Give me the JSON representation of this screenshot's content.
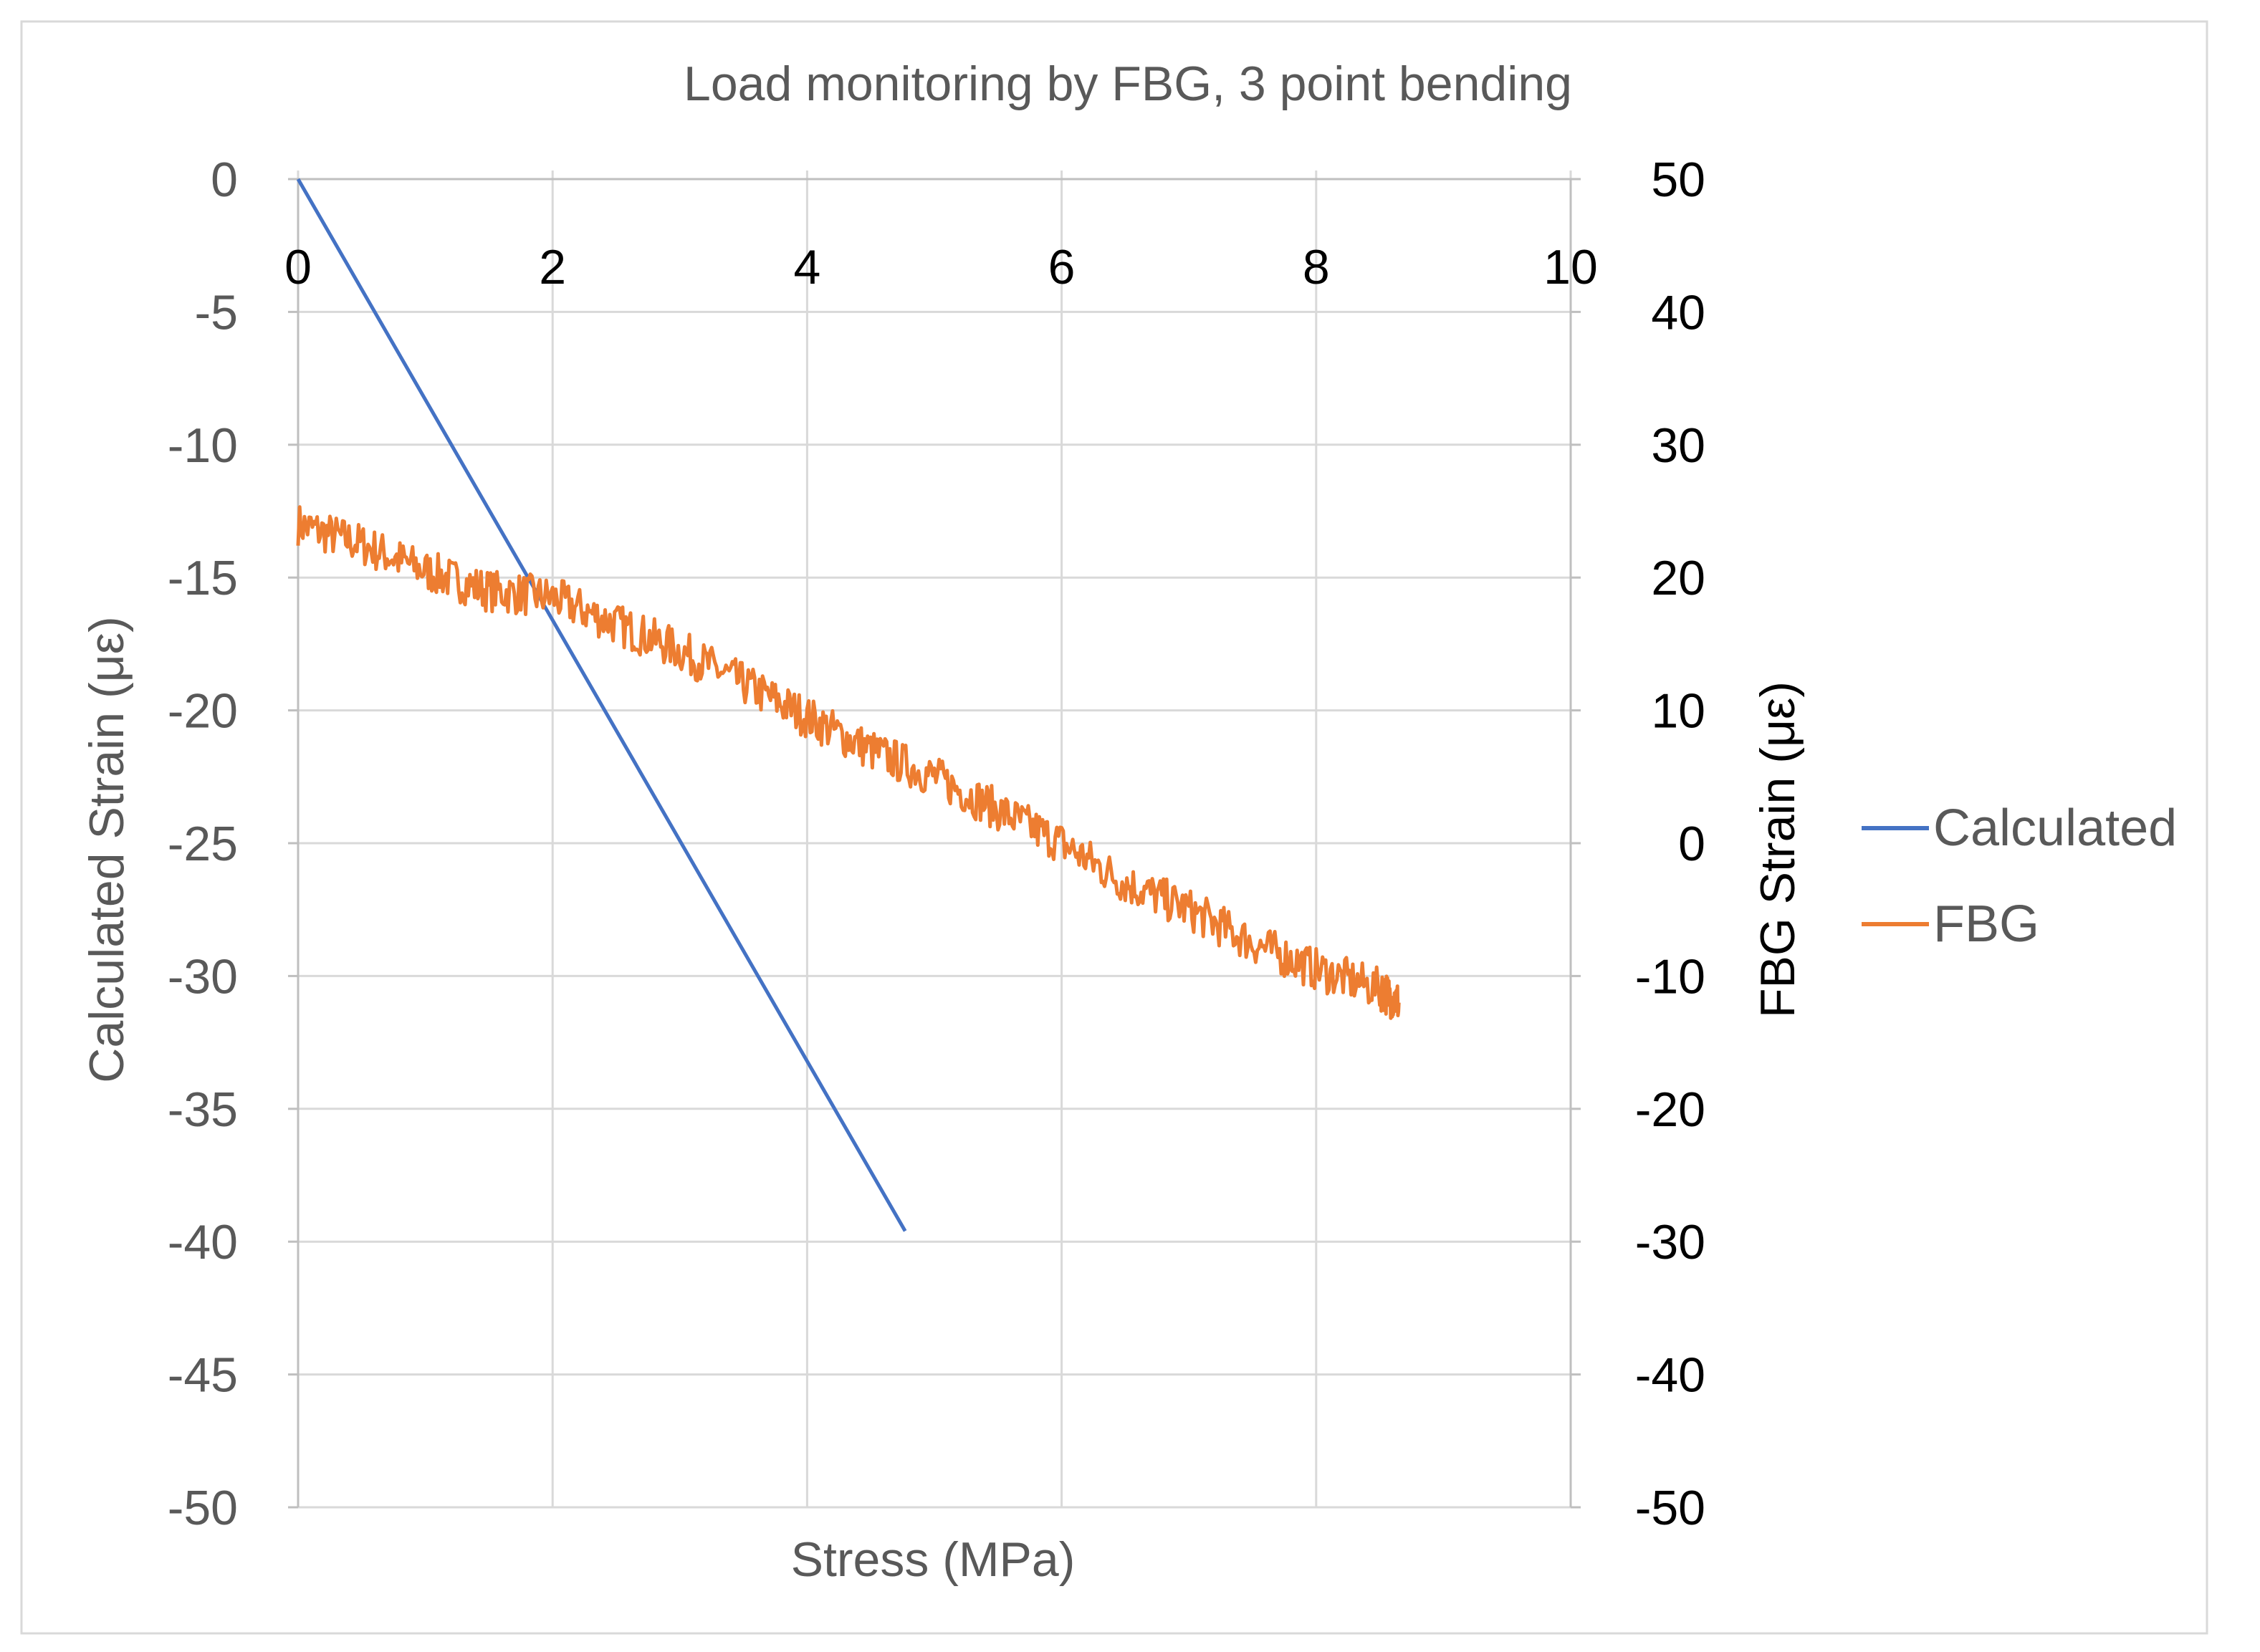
{
  "chart_data": {
    "type": "line",
    "title": "Load monitoring by FBG, 3 point bending",
    "xlabel": "Stress (MPa)",
    "ylabel_left": "Calculated Strain (με)",
    "ylabel_right": "FBG Strain (με)",
    "xlim": [
      0,
      10
    ],
    "ylim_left": [
      -50,
      0
    ],
    "ylim_right": [
      -50,
      50
    ],
    "x_ticks": [
      0,
      2,
      4,
      6,
      8,
      10
    ],
    "x_tick_labels": [
      "0",
      "2",
      "4",
      "6",
      "8",
      "10"
    ],
    "y_left_ticks": [
      0,
      -5,
      -10,
      -15,
      -20,
      -25,
      -30,
      -35,
      -40,
      -45,
      -50
    ],
    "y_left_tick_labels": [
      "0",
      "-5",
      "-10",
      "-15",
      "-20",
      "-25",
      "-30",
      "-35",
      "-40",
      "-45",
      "-50"
    ],
    "y_right_ticks": [
      50,
      40,
      30,
      20,
      10,
      0,
      -10,
      -20,
      -30,
      -40,
      -50
    ],
    "y_right_tick_labels": [
      "50",
      "40",
      "30",
      "20",
      "10",
      "0",
      "-10",
      "-20",
      "-30",
      "-40",
      "-50"
    ],
    "grid": true,
    "legend_position": "right",
    "series": [
      {
        "name": "Calculated",
        "axis": "left",
        "color": "#4472C4",
        "x": [
          0,
          4.77
        ],
        "y": [
          0,
          -39.6
        ]
      },
      {
        "name": "FBG",
        "axis": "right",
        "color": "#ED7D31",
        "x": [
          0,
          0.5,
          1.0,
          1.5,
          2.0,
          2.5,
          3.0,
          3.5,
          4.0,
          4.5,
          5.0,
          5.5,
          6.0,
          6.5,
          7.0,
          7.5,
          8.0,
          8.5,
          8.65
        ],
        "y": [
          24,
          22.5,
          20.5,
          19,
          18.5,
          16.5,
          14.5,
          12,
          9.5,
          7,
          5,
          2.5,
          0,
          -3,
          -5,
          -7.5,
          -9.5,
          -11,
          -12
        ]
      }
    ]
  }
}
